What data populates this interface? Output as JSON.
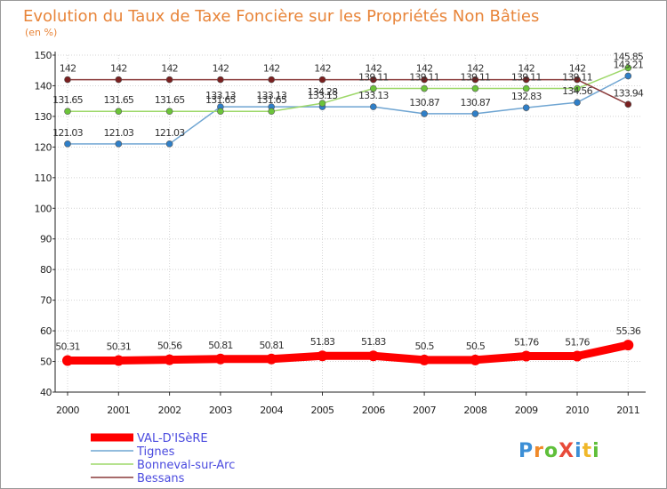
{
  "chart_data": {
    "type": "line",
    "title": "Evolution du Taux de Taxe Foncière sur les Propriétés Non Bâties",
    "ylabel": "(en %)",
    "xlabel": "",
    "ylim": [
      40,
      150
    ],
    "yticks": [
      "40",
      "50",
      "60",
      "70",
      "80",
      "90",
      "100",
      "110",
      "120",
      "130",
      "140",
      "150"
    ],
    "categories": [
      "2000",
      "2001",
      "2002",
      "2003",
      "2004",
      "2005",
      "2006",
      "2007",
      "2008",
      "2009",
      "2010",
      "2011"
    ],
    "series": [
      {
        "name": "VAL-D'ISèRE",
        "color": "#ff0000",
        "marker_color": "#ff0000",
        "values": [
          50.31,
          50.31,
          50.56,
          50.81,
          50.81,
          51.83,
          51.83,
          50.5,
          50.5,
          51.76,
          51.76,
          55.36
        ],
        "labels": [
          "50.31",
          "50.31",
          "50.56",
          "50.81",
          "50.81",
          "51.83",
          "51.83",
          "50.5",
          "50.5",
          "51.76",
          "51.76",
          "55.36"
        ]
      },
      {
        "name": "Tignes",
        "color": "#6fa5d2",
        "marker_color": "#2f7fc8",
        "values": [
          121.03,
          121.03,
          121.03,
          133.13,
          133.13,
          133.13,
          133.13,
          130.87,
          130.87,
          132.83,
          134.56,
          143.21
        ],
        "labels": [
          "121.03",
          "121.03",
          "121.03",
          "133.13",
          "133.13",
          "133.13",
          "133.13",
          "130.87",
          "130.87",
          "132.83",
          "134.56",
          "143.21"
        ]
      },
      {
        "name": "Bonneval-sur-Arc",
        "color": "#9ed86a",
        "marker_color": "#6cc43a",
        "values": [
          131.65,
          131.65,
          131.65,
          131.65,
          131.65,
          134.28,
          139.11,
          139.11,
          139.11,
          139.11,
          139.11,
          145.85
        ],
        "labels": [
          "131.65",
          "131.65",
          "131.65",
          "131.65",
          "131.65",
          "134.28",
          "139.11",
          "139.11",
          "139.11",
          "139.11",
          "139.11",
          "145.85"
        ]
      },
      {
        "name": "Bessans",
        "color": "#8a3a3a",
        "marker_color": "#7a2020",
        "values": [
          142,
          142,
          142,
          142,
          142,
          142,
          142,
          142,
          142,
          142,
          142,
          133.94
        ],
        "labels": [
          "142",
          "142",
          "142",
          "142",
          "142",
          "142",
          "142",
          "142",
          "142",
          "142",
          "142",
          "133.94"
        ]
      }
    ]
  },
  "watermark": "ProXiti"
}
